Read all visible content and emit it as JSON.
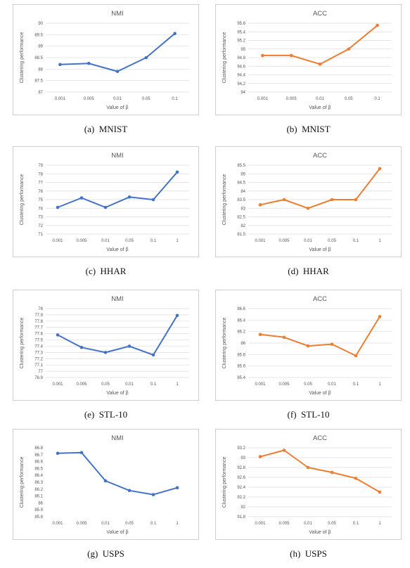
{
  "colors": {
    "nmi": "#4472c4",
    "acc": "#ed7d31",
    "grid": "#dcdcdc",
    "text": "#555555"
  },
  "chart_data": [
    {
      "type": "line",
      "title": "NMI",
      "xlabel": "Value of  β",
      "ylabel": "Clustering performance",
      "categories": [
        "0.001",
        "0.005",
        "0.01",
        "0.05",
        "0.1"
      ],
      "series": [
        {
          "values": [
            88.2,
            88.25,
            87.9,
            88.5,
            89.55
          ]
        }
      ],
      "ylim": [
        87,
        90
      ],
      "yticks": [
        "87",
        "87.5",
        "88",
        "88.5",
        "89",
        "89.5",
        "90"
      ],
      "color": "nmi",
      "caption": "(a)  MNIST",
      "grid": true
    },
    {
      "type": "line",
      "title": "ACC",
      "xlabel": "Value of  β",
      "ylabel": "Clustering performance",
      "categories": [
        "0.001",
        "0.005",
        "0.01",
        "0.05",
        "0.1"
      ],
      "series": [
        {
          "values": [
            94.85,
            94.85,
            94.65,
            95.0,
            95.55
          ]
        }
      ],
      "ylim": [
        94,
        95.6
      ],
      "yticks": [
        "94",
        "94.2",
        "94.4",
        "94.6",
        "94.8",
        "95",
        "95.2",
        "95.4",
        "95.6"
      ],
      "color": "acc",
      "caption": "(b)  MNIST",
      "grid": true
    },
    {
      "type": "line",
      "title": "NMI",
      "xlabel": "Value of  β",
      "ylabel": "Clustering performance",
      "categories": [
        "0.001",
        "0.005",
        "0.01",
        "0.05",
        "0.1",
        "1"
      ],
      "series": [
        {
          "values": [
            74.1,
            75.2,
            74.1,
            75.3,
            75.0,
            78.2
          ]
        }
      ],
      "ylim": [
        71,
        79
      ],
      "yticks": [
        "71",
        "72",
        "73",
        "74",
        "75",
        "76",
        "77",
        "78",
        "79"
      ],
      "color": "nmi",
      "caption": "(c)  HHAR",
      "grid": true
    },
    {
      "type": "line",
      "title": "ACC",
      "xlabel": "Value of  β",
      "ylabel": "Clustering performance",
      "categories": [
        "0.001",
        "0.005",
        "0.01",
        "0.05",
        "0.1",
        "1"
      ],
      "series": [
        {
          "values": [
            83.2,
            83.5,
            83.0,
            83.5,
            83.5,
            85.3
          ]
        }
      ],
      "ylim": [
        81.5,
        85.5
      ],
      "yticks": [
        "81.5",
        "82",
        "82.5",
        "83",
        "83.5",
        "84",
        "84.5",
        "85",
        "85.5"
      ],
      "color": "acc",
      "caption": "(d)  HHAR",
      "grid": true
    },
    {
      "type": "line",
      "title": "NMI",
      "xlabel": "Value of  β",
      "ylabel": "Clustering performance",
      "categories": [
        "0.001",
        "0.005",
        "0.05",
        "0.01",
        "0.1",
        "1"
      ],
      "series": [
        {
          "values": [
            77.58,
            77.38,
            77.3,
            77.4,
            77.26,
            77.89
          ]
        }
      ],
      "ylim": [
        76.9,
        78
      ],
      "yticks": [
        "76.9",
        "77",
        "77.1",
        "77.2",
        "77.3",
        "77.4",
        "77.5",
        "77.6",
        "77.7",
        "77.8",
        "77.9",
        "78"
      ],
      "color": "nmi",
      "caption": "(e)  STL-10",
      "grid": true
    },
    {
      "type": "line",
      "title": "ACC",
      "xlabel": "Value of  β",
      "ylabel": "Clustering performance",
      "categories": [
        "0.001",
        "0.005",
        "0.05",
        "0.01",
        "0.1",
        "1"
      ],
      "series": [
        {
          "values": [
            86.15,
            86.1,
            85.95,
            85.98,
            85.78,
            86.46
          ]
        }
      ],
      "ylim": [
        85.4,
        86.6
      ],
      "yticks": [
        "85.4",
        "85.6",
        "85.8",
        "86",
        "86.2",
        "86.4",
        "86.6"
      ],
      "color": "acc",
      "caption": "(f)  STL-10",
      "grid": true
    },
    {
      "type": "line",
      "title": "NMI",
      "xlabel": "Value of  β",
      "ylabel": "Clustering performance",
      "categories": [
        "0.001",
        "0.005",
        "0.01",
        "0.05",
        "0.1",
        "1"
      ],
      "series": [
        {
          "values": [
            86.72,
            86.73,
            86.32,
            86.18,
            86.12,
            86.22
          ]
        }
      ],
      "ylim": [
        85.8,
        86.8
      ],
      "yticks": [
        "85.8",
        "85.9",
        "86",
        "86.1",
        "86.2",
        "86.3",
        "86.4",
        "86.5",
        "86.6",
        "86.7",
        "86.8"
      ],
      "color": "nmi",
      "caption": "(g)  USPS",
      "grid": false
    },
    {
      "type": "line",
      "title": "ACC",
      "xlabel": "Value of  β",
      "ylabel": "Clustering performance",
      "categories": [
        "0.001",
        "0.005",
        "0.01",
        "0.05",
        "0.1",
        "1"
      ],
      "series": [
        {
          "values": [
            93.02,
            93.15,
            92.8,
            92.7,
            92.58,
            92.3
          ]
        }
      ],
      "ylim": [
        91.8,
        93.2
      ],
      "yticks": [
        "91.8",
        "92",
        "92.2",
        "92.4",
        "92.6",
        "92.8",
        "93",
        "93.2"
      ],
      "color": "acc",
      "caption": "(h)  USPS",
      "grid": true
    }
  ]
}
